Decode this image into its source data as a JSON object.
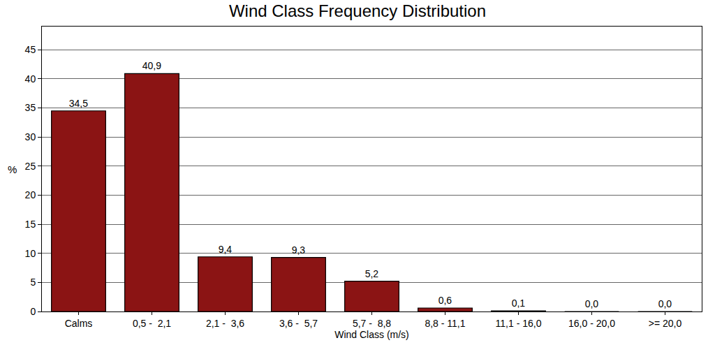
{
  "chart_data": {
    "type": "bar",
    "title": "Wind Class Frequency Distribution",
    "x_label": "Wind Class (m/s)",
    "y_label": "%",
    "categories": [
      "Calms",
      "0,5 -  2,1",
      "2,1 -  3,6",
      "3,6 -  5,7",
      "5,7 -  8,8",
      "8,8 - 11,1",
      "11,1 - 16,0",
      "16,0 - 20,0",
      ">= 20,0"
    ],
    "values": [
      34.5,
      40.9,
      9.4,
      9.3,
      5.2,
      0.6,
      0.1,
      0.0,
      0.0
    ],
    "value_labels": [
      "34,5",
      "40,9",
      "9,4",
      "9,3",
      "5,2",
      "0,6",
      "0,1",
      "0,0",
      "0,0"
    ],
    "data_labels": true,
    "color": "#8b1414",
    "ylim": [
      0,
      49
    ],
    "yticks": [
      0,
      5,
      10,
      15,
      20,
      25,
      30,
      35,
      40,
      45
    ],
    "grid": true
  }
}
